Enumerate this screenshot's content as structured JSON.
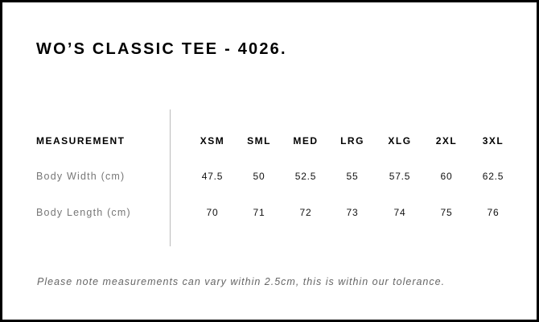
{
  "title": "WO’S CLASSIC TEE - 4026.",
  "table": {
    "header_label": "MEASUREMENT",
    "sizes": [
      "XSM",
      "SML",
      "MED",
      "LRG",
      "XLG",
      "2XL",
      "3XL"
    ],
    "rows": [
      {
        "label": "Body Width (cm)",
        "values": [
          "47.5",
          "50",
          "52.5",
          "55",
          "57.5",
          "60",
          "62.5"
        ]
      },
      {
        "label": "Body Length (cm)",
        "values": [
          "70",
          "71",
          "72",
          "73",
          "74",
          "75",
          "76"
        ]
      }
    ]
  },
  "note": "Please note measurements can vary within 2.5cm, this is within our tolerance."
}
